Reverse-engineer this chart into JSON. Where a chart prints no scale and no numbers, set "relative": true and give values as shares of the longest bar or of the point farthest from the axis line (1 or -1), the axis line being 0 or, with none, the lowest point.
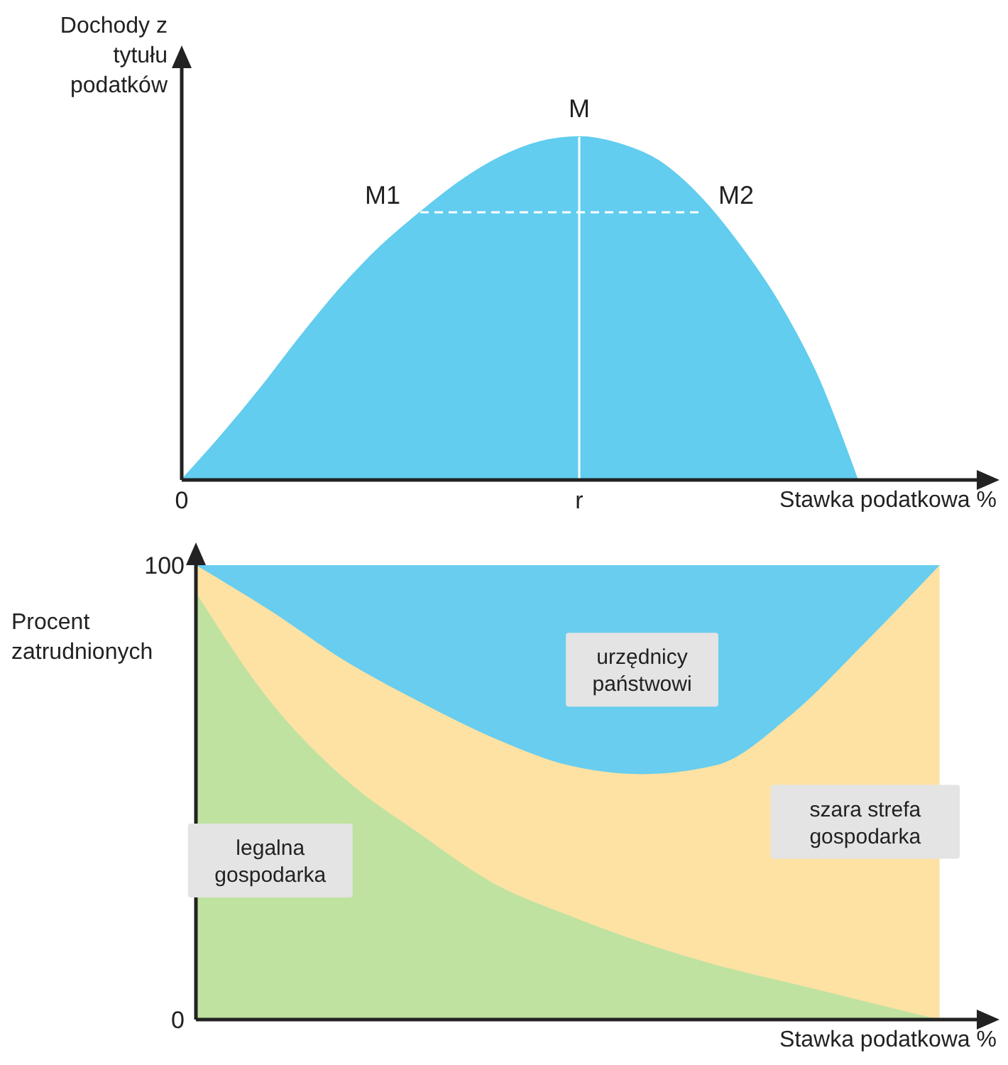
{
  "chart_data": [
    {
      "type": "area",
      "xlabel": "Stawka podatkowa %",
      "ylabel": "Dochody z tytułu podatków",
      "relative": true,
      "categories": [
        "0",
        null,
        null,
        null,
        null,
        null,
        null,
        null,
        null,
        null,
        "r",
        null,
        null,
        null,
        null,
        null,
        null,
        null,
        null,
        null,
        null
      ],
      "series": [
        {
          "type": "area",
          "color": "#62cdee",
          "values": [
            0,
            0.13,
            0.27,
            0.42,
            0.56,
            0.68,
            0.78,
            0.87,
            0.94,
            0.985,
            1,
            0.98,
            0.93,
            0.83,
            0.69,
            0.52,
            0.3,
            0,
            null,
            null,
            null
          ]
        },
        {
          "type": "line",
          "color": "#ffffff",
          "line_style": "dashed",
          "values": [
            null,
            null,
            null,
            null,
            null,
            null,
            0.78,
            0.78,
            0.78,
            0.78,
            0.78,
            0.78,
            0.78,
            0.78,
            null,
            null,
            null,
            null,
            null,
            null,
            null
          ]
        }
      ],
      "ref_lines": [
        {
          "axis": "x",
          "value": "r",
          "color": "#ffffff"
        }
      ],
      "annotations": [
        {
          "text": "M",
          "x": "r",
          "y": 1
        },
        "M1",
        "M2"
      ]
    },
    {
      "type": "area",
      "stacked": true,
      "xlabel": "Stawka podatkowa %",
      "ylabel": "Procent zatrudnionych",
      "ylim": [
        0,
        100
      ],
      "yticks": [
        0,
        100
      ],
      "tick_labels": "y",
      "categories": [
        null,
        null,
        null,
        null,
        null,
        null,
        null,
        null,
        null,
        null,
        null
      ],
      "series": [
        {
          "name": "legalna gospodarka",
          "color": "#bfe2a0",
          "values": [
            94,
            70,
            53,
            41,
            30,
            23,
            17,
            12,
            8,
            4,
            0
          ]
        },
        {
          "name": "szara strefa gospodarka",
          "color": "#fde2a4",
          "values": [
            6,
            20,
            26,
            29,
            32,
            33,
            37,
            44,
            59,
            79,
            100
          ]
        },
        {
          "name": "urzędnicy państwowi",
          "color": "#68cdee",
          "values": [
            0,
            10,
            21,
            30,
            38,
            44,
            46,
            44,
            33,
            17,
            0
          ]
        }
      ]
    }
  ]
}
